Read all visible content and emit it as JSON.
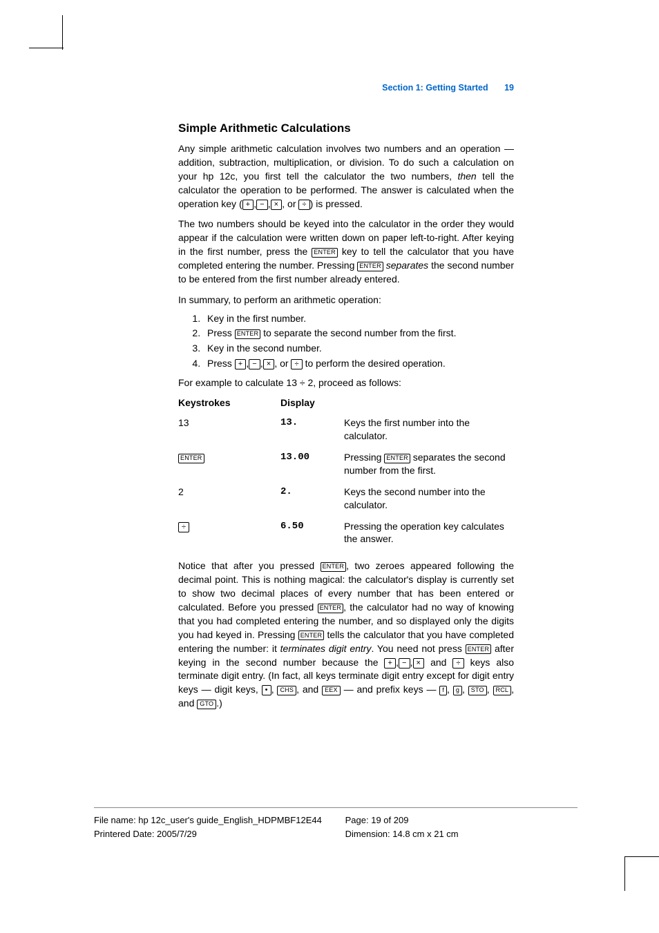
{
  "header": {
    "section_label": "Section 1: Getting Started",
    "page_number": "19"
  },
  "main": {
    "title": "Simple Arithmetic Calculations",
    "para1_pre": "Any simple arithmetic calculation involves two numbers and an operation — addition, subtraction, multiplication, or division. To do such a calculation on your hp 12c, you first tell the calculator the two numbers, ",
    "para1_then": "then",
    "para1_post": " tell the calculator the operation to be performed. The answer is calculated when the operation key (",
    "para1_close": ") is pressed.",
    "or_word": ", or ",
    "comma": ",",
    "keys": {
      "plus": "+",
      "minus": "−",
      "times": "×",
      "divide": "÷",
      "enter": "ENTER",
      "dot": "•",
      "chs": "CHS",
      "eex": "EEX",
      "f": "f",
      "g": "g",
      "sto": "STO",
      "rcl": "RCL",
      "gto": "GTO"
    },
    "para2_a": "The two numbers should be keyed into the calculator in the order they would appear if the calculation were written down on paper left-to-right. After keying in the first number, press the ",
    "para2_b": " key to tell the calculator that you have completed entering the number. Pressing ",
    "para2_sep": "separates",
    "para2_c": " the second number to be entered from the first number already entered.",
    "summary_line": "In summary, to perform an arithmetic operation:",
    "steps": {
      "s1": "Key in the first number.",
      "s2a": "Press ",
      "s2b": " to separate the second number from the first.",
      "s3": "Key in the second number.",
      "s4a": "Press ",
      "s4b": " to perform the desired operation."
    },
    "example_line": "For example to calculate 13 ÷ 2, proceed as follows:",
    "table": {
      "h1": "Keystrokes",
      "h2": "Display",
      "r1": {
        "k": "13",
        "d": "13.",
        "e": "Keys the first number into the calculator."
      },
      "r2": {
        "d": "13.00",
        "e_a": "Pressing ",
        "e_b": " separates the second number from the first."
      },
      "r3": {
        "k": "2",
        "d": "2.",
        "e": "Keys the second number into the calculator."
      },
      "r4": {
        "d": "6.50",
        "e": "Pressing the operation key calculates the answer."
      }
    },
    "p3": {
      "a": "Notice that after you pressed ",
      "b": ", two zeroes appeared following the decimal point. This is nothing magical: the calculator's display is currently set to show two decimal places of every number that has been entered or calculated. Before you pressed ",
      "c": ", the calculator had no way of knowing that you had completed entering the number, and so displayed only the digits you had keyed in. Pressing ",
      "d": " tells the calculator that you have completed entering the number: it ",
      "term": "terminates digit entry",
      "e": ". You need not press ",
      "f": " after keying in the second number because the ",
      "g": " and ",
      "h": " keys also terminate digit entry. (In fact, all keys terminate digit entry except for digit entry keys — digit keys, ",
      "i": ", and ",
      "j": " — and prefix keys — ",
      "k": ", and ",
      "l": ".)"
    }
  },
  "footer": {
    "file_label": "File name: hp 12c_user's guide_English_HDPMBF12E44",
    "date_label": "Printered Date: 2005/7/29",
    "page_label": "Page: 19 of 209",
    "dim_label": "Dimension: 14.8 cm x 21 cm"
  }
}
